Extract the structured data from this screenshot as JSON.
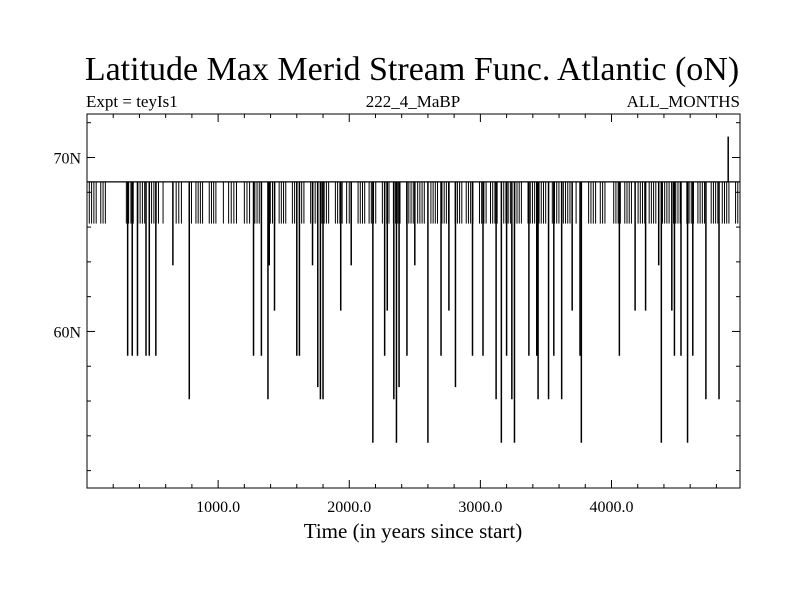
{
  "chart_data": {
    "type": "line",
    "title": "Latitude Max Merid Stream Func. Atlantic (oN)",
    "subtitle_left": "Expt = teyIs1",
    "subtitle_center": "222_4_MaBP",
    "subtitle_right": "ALL_MONTHS",
    "xlabel": "Time (in years since start)",
    "ylabel": "",
    "xlim": [
      0,
      4980
    ],
    "ylim": [
      51.0,
      72.5
    ],
    "x_ticks": [
      {
        "value": 1000,
        "label": "1000.0"
      },
      {
        "value": 2000,
        "label": "2000.0"
      },
      {
        "value": 3000,
        "label": "3000.0"
      },
      {
        "value": 4000,
        "label": "4000.0"
      }
    ],
    "y_ticks": [
      {
        "value": 60,
        "label": "60N"
      },
      {
        "value": 70,
        "label": "70N"
      }
    ],
    "baseline_value": 68.6,
    "upper_band_value": 66.2,
    "upper_band_segments": [
      [
        0,
        140
      ],
      [
        300,
        580
      ],
      [
        680,
        720
      ],
      [
        780,
        1000
      ],
      [
        1040,
        1140
      ],
      [
        1180,
        1240
      ],
      [
        1280,
        1600
      ],
      [
        1620,
        1980
      ],
      [
        2000,
        3700
      ],
      [
        3730,
        3780
      ],
      [
        3790,
        3950
      ],
      [
        4000,
        4980
      ]
    ],
    "spikes": [
      {
        "x": 310,
        "y": 58.6
      },
      {
        "x": 345,
        "y": 58.6
      },
      {
        "x": 385,
        "y": 58.6
      },
      {
        "x": 450,
        "y": 58.6
      },
      {
        "x": 475,
        "y": 58.6
      },
      {
        "x": 525,
        "y": 58.6
      },
      {
        "x": 655,
        "y": 63.8
      },
      {
        "x": 780,
        "y": 56.1
      },
      {
        "x": 1270,
        "y": 58.6
      },
      {
        "x": 1330,
        "y": 58.6
      },
      {
        "x": 1380,
        "y": 56.1
      },
      {
        "x": 1390,
        "y": 63.8
      },
      {
        "x": 1430,
        "y": 61.2
      },
      {
        "x": 1600,
        "y": 58.6
      },
      {
        "x": 1620,
        "y": 58.6
      },
      {
        "x": 1720,
        "y": 63.8
      },
      {
        "x": 1760,
        "y": 56.8
      },
      {
        "x": 1780,
        "y": 56.1
      },
      {
        "x": 1800,
        "y": 56.1
      },
      {
        "x": 1935,
        "y": 61.2
      },
      {
        "x": 2015,
        "y": 63.8
      },
      {
        "x": 2180,
        "y": 53.6
      },
      {
        "x": 2270,
        "y": 58.6
      },
      {
        "x": 2290,
        "y": 61.2
      },
      {
        "x": 2340,
        "y": 56.1
      },
      {
        "x": 2360,
        "y": 53.6
      },
      {
        "x": 2380,
        "y": 56.8
      },
      {
        "x": 2440,
        "y": 58.6
      },
      {
        "x": 2500,
        "y": 63.8
      },
      {
        "x": 2600,
        "y": 53.6
      },
      {
        "x": 2700,
        "y": 58.6
      },
      {
        "x": 2760,
        "y": 61.2
      },
      {
        "x": 2810,
        "y": 56.8
      },
      {
        "x": 2940,
        "y": 58.6
      },
      {
        "x": 3020,
        "y": 58.6
      },
      {
        "x": 3120,
        "y": 56.1
      },
      {
        "x": 3160,
        "y": 53.6
      },
      {
        "x": 3200,
        "y": 58.6
      },
      {
        "x": 3240,
        "y": 56.1
      },
      {
        "x": 3260,
        "y": 53.6
      },
      {
        "x": 3370,
        "y": 58.6
      },
      {
        "x": 3430,
        "y": 58.6
      },
      {
        "x": 3440,
        "y": 56.1
      },
      {
        "x": 3520,
        "y": 56.1
      },
      {
        "x": 3560,
        "y": 58.6
      },
      {
        "x": 3620,
        "y": 56.1
      },
      {
        "x": 3700,
        "y": 61.2
      },
      {
        "x": 3760,
        "y": 58.6
      },
      {
        "x": 3770,
        "y": 53.6
      },
      {
        "x": 4060,
        "y": 58.6
      },
      {
        "x": 4180,
        "y": 61.2
      },
      {
        "x": 4260,
        "y": 61.2
      },
      {
        "x": 4360,
        "y": 63.8
      },
      {
        "x": 4380,
        "y": 53.6
      },
      {
        "x": 4460,
        "y": 61.2
      },
      {
        "x": 4480,
        "y": 58.6
      },
      {
        "x": 4530,
        "y": 58.6
      },
      {
        "x": 4580,
        "y": 53.6
      },
      {
        "x": 4620,
        "y": 58.6
      },
      {
        "x": 4720,
        "y": 56.1
      },
      {
        "x": 4820,
        "y": 56.1
      },
      {
        "x": 4890,
        "y": 71.2
      }
    ]
  }
}
